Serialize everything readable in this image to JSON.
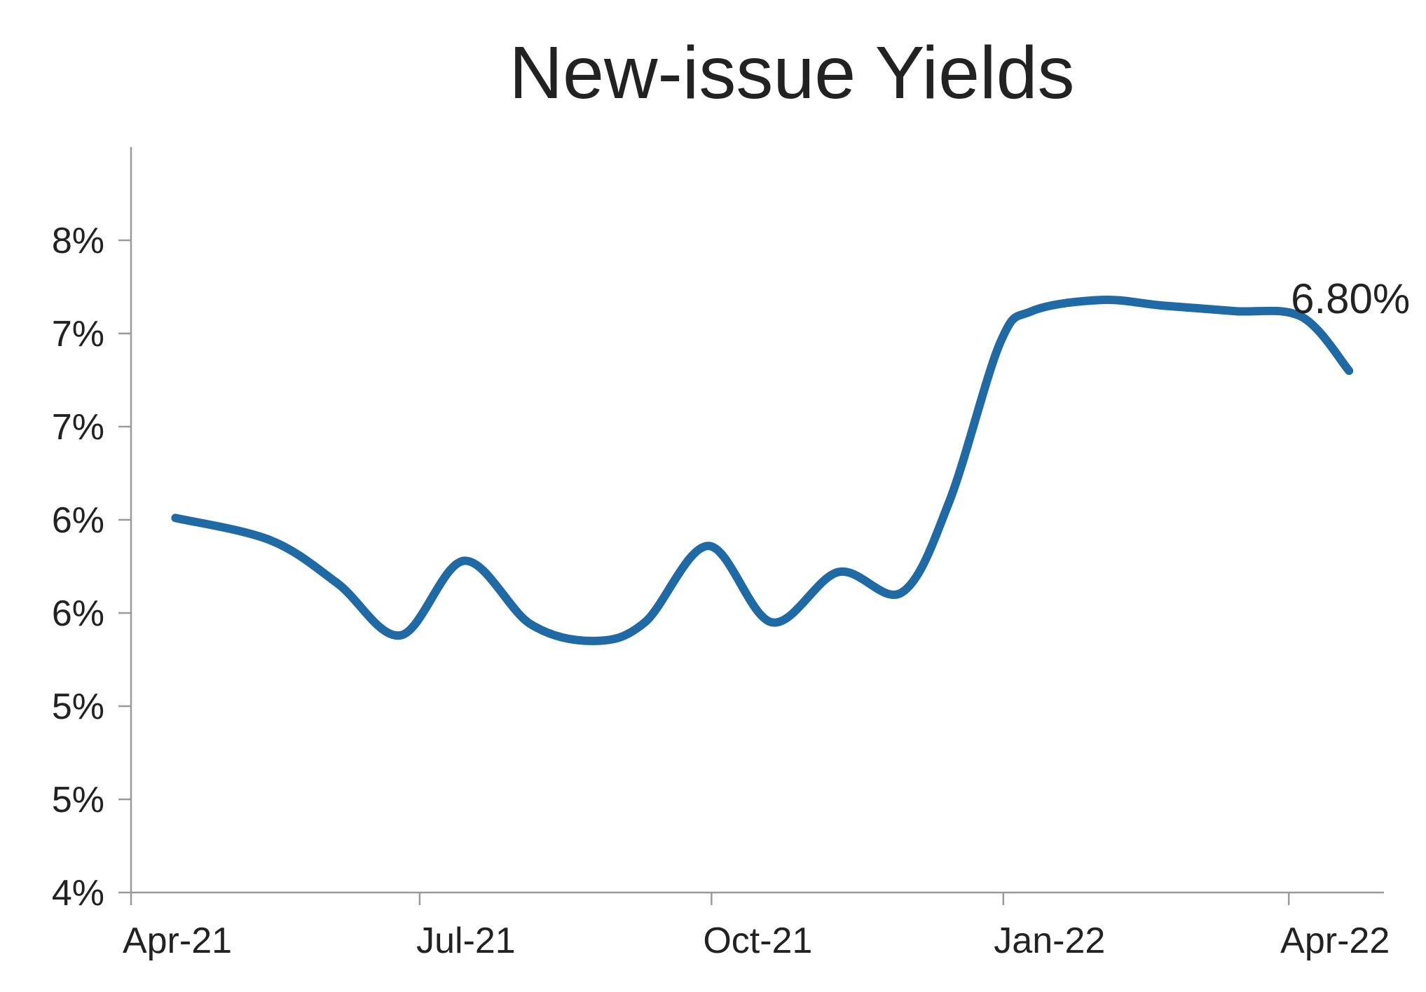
{
  "chart_data": {
    "type": "line",
    "title": "New-issue Yields",
    "xlabel": "",
    "ylabel": "",
    "x": [
      "2021-04-15",
      "2021-05-15",
      "2021-06-05",
      "2021-06-25",
      "2021-07-15",
      "2021-08-05",
      "2021-08-25",
      "2021-09-10",
      "2021-09-30",
      "2021-10-20",
      "2021-11-10",
      "2021-11-30",
      "2021-12-15",
      "2021-12-31",
      "2022-01-10",
      "2022-02-01",
      "2022-02-20",
      "2022-03-15",
      "2022-04-05",
      "2022-04-20"
    ],
    "series": [
      {
        "values": [
          6.01,
          5.89,
          5.66,
          5.38,
          5.78,
          5.44,
          5.35,
          5.45,
          5.86,
          5.45,
          5.72,
          5.61,
          6.1,
          6.95,
          7.12,
          7.18,
          7.15,
          7.12,
          7.09,
          6.8
        ],
        "color": "#1f6aa5"
      }
    ],
    "ylim": [
      4,
      8
    ],
    "xlim": [
      "2021-04-01",
      "2022-05-01"
    ],
    "y_ticks": [
      {
        "value": 4.0,
        "label": "4%"
      },
      {
        "value": 4.5,
        "label": "5%"
      },
      {
        "value": 5.0,
        "label": "5%"
      },
      {
        "value": 5.5,
        "label": "6%"
      },
      {
        "value": 6.0,
        "label": "6%"
      },
      {
        "value": 6.5,
        "label": "7%"
      },
      {
        "value": 7.0,
        "label": "7%"
      },
      {
        "value": 7.5,
        "label": "8%"
      }
    ],
    "x_ticks": [
      {
        "value": "2021-04-01",
        "label": "Apr-21"
      },
      {
        "value": "2021-07-01",
        "label": "Jul-21"
      },
      {
        "value": "2021-10-01",
        "label": "Oct-21"
      },
      {
        "value": "2022-01-01",
        "label": "Jan-22"
      },
      {
        "value": "2022-04-01",
        "label": "Apr-22"
      }
    ],
    "annotations": [
      {
        "text": "6.80%",
        "x": "2022-04-20",
        "y": 6.8
      }
    ],
    "grid": false,
    "legend": "none"
  }
}
